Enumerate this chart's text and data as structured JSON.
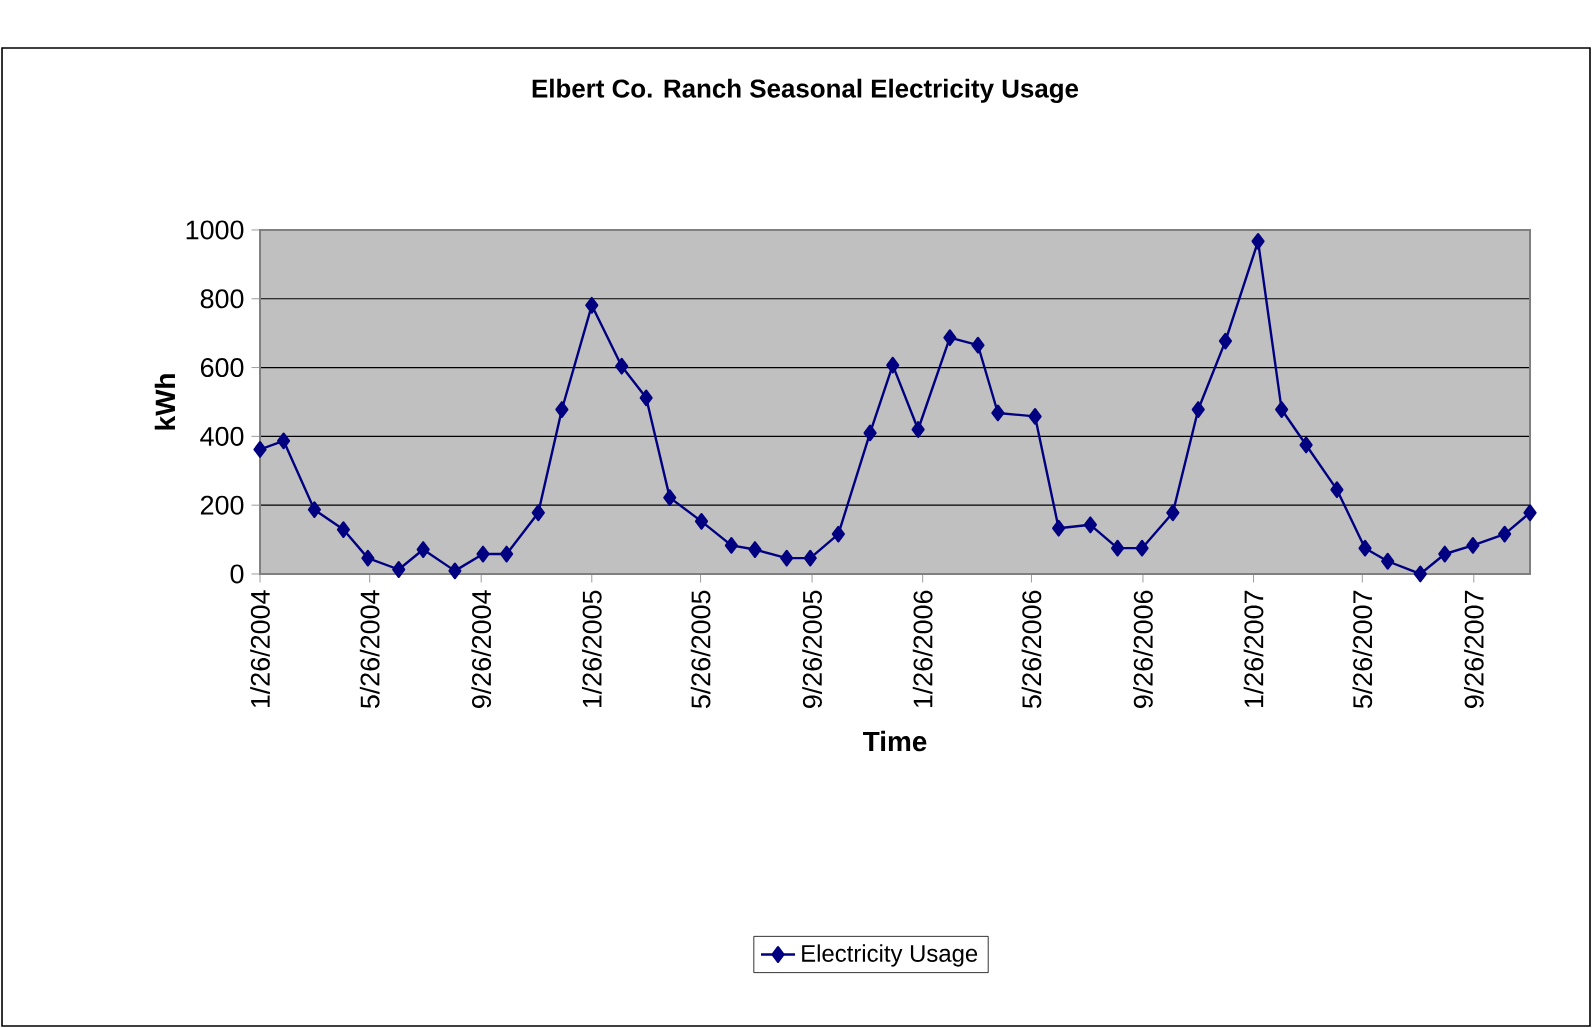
{
  "chart_data": {
    "type": "line",
    "title": "Elbert Co. Ranch Seasonal Electricity Usage",
    "xlabel": "Time",
    "ylabel": "kWh",
    "x": [
      "2004-01-26",
      "2004-02-21",
      "2004-03-26",
      "2004-04-27",
      "2004-05-24",
      "2004-06-27",
      "2004-07-24",
      "2004-08-28",
      "2004-09-28",
      "2004-10-24",
      "2004-11-28",
      "2004-12-24",
      "2005-01-26",
      "2005-02-28",
      "2005-03-27",
      "2005-04-22",
      "2005-05-27",
      "2005-06-29",
      "2005-07-25",
      "2005-08-29",
      "2005-09-24",
      "2005-10-25",
      "2005-11-29",
      "2005-12-24",
      "2006-01-21",
      "2006-02-25",
      "2006-03-28",
      "2006-04-19",
      "2006-05-30",
      "2006-06-25",
      "2006-07-30",
      "2006-08-29",
      "2006-09-25",
      "2006-10-29",
      "2006-11-26",
      "2006-12-26",
      "2007-01-31",
      "2007-02-26",
      "2007-03-25",
      "2007-04-28",
      "2007-05-29",
      "2007-06-23",
      "2007-07-29",
      "2007-08-25",
      "2007-09-25",
      "2007-10-30",
      "2007-11-27"
    ],
    "series": [
      {
        "name": "Electricity Usage",
        "color": "#000080",
        "values": [
          362,
          387,
          187,
          129,
          46,
          13,
          71,
          9,
          58,
          58,
          178,
          478,
          781,
          604,
          512,
          222,
          153,
          83,
          71,
          46,
          46,
          116,
          410,
          607,
          420,
          687,
          665,
          468,
          458,
          133,
          143,
          75,
          75,
          178,
          478,
          677,
          967,
          478,
          375,
          245,
          75,
          37,
          0,
          58,
          83,
          116,
          178
        ]
      }
    ],
    "xlim": [
      "2004-01-26",
      "2007-11-27"
    ],
    "xticks": [
      {
        "value": "2004-01-26",
        "label": "1/26/2004"
      },
      {
        "value": "2004-05-26",
        "label": "5/26/2004"
      },
      {
        "value": "2004-09-26",
        "label": "9/26/2004"
      },
      {
        "value": "2005-01-26",
        "label": "1/26/2005"
      },
      {
        "value": "2005-05-26",
        "label": "5/26/2005"
      },
      {
        "value": "2005-09-26",
        "label": "9/26/2005"
      },
      {
        "value": "2006-01-26",
        "label": "1/26/2006"
      },
      {
        "value": "2006-05-26",
        "label": "5/26/2006"
      },
      {
        "value": "2006-09-26",
        "label": "9/26/2006"
      },
      {
        "value": "2007-01-26",
        "label": "1/26/2007"
      },
      {
        "value": "2007-05-26",
        "label": "5/26/2007"
      },
      {
        "value": "2007-09-26",
        "label": "9/26/2007"
      }
    ],
    "ylim": [
      0,
      1000
    ],
    "yticks": [
      0,
      200,
      400,
      600,
      800,
      1000
    ],
    "grid": "y",
    "legend": "bottom",
    "marker": "diamond",
    "line_style": "solid"
  }
}
